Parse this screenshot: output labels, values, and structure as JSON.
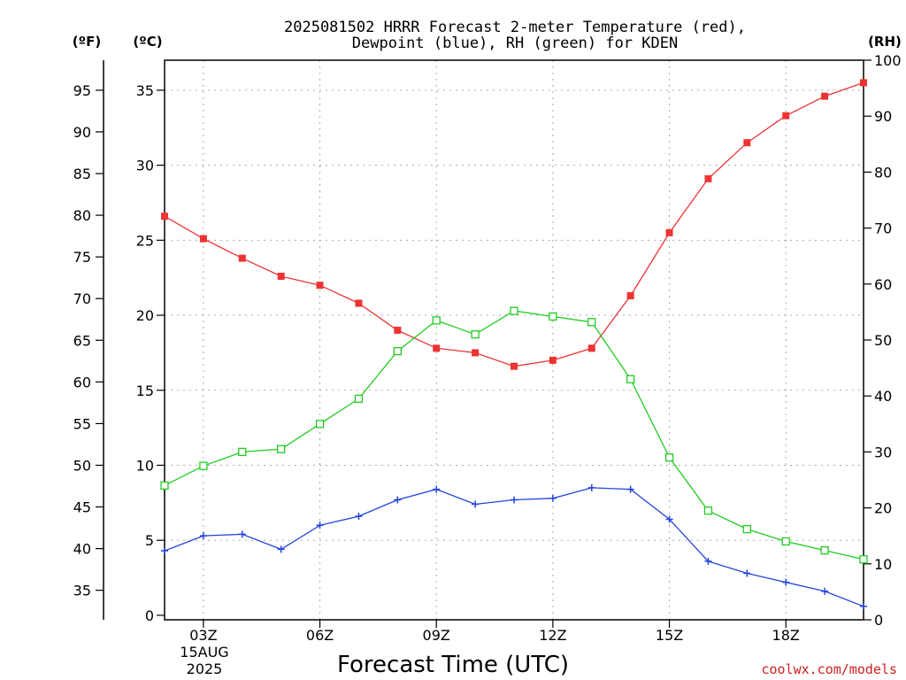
{
  "chart_data": {
    "type": "line",
    "title_line1": "2025081502 HRRR Forecast 2-meter Temperature (red),",
    "title_line2": "Dewpoint (blue), RH (green) for KDEN",
    "units": {
      "fahrenheit": "(ºF)",
      "celsius": "(ºC)",
      "rh": "(RH)"
    },
    "xlabel": "Forecast Time (UTC)",
    "x_first_label_date_line1": "15AUG",
    "x_first_label_date_line2": "2025",
    "credit": "coolwx.com/models",
    "x_hours": [
      2,
      3,
      4,
      5,
      6,
      7,
      8,
      9,
      10,
      11,
      12,
      13,
      14,
      15,
      16,
      17,
      18,
      19,
      20
    ],
    "x_range": [
      2,
      20
    ],
    "x_tick_hours": [
      3,
      6,
      9,
      12,
      15,
      18
    ],
    "x_tick_labels": [
      "03Z",
      "06Z",
      "09Z",
      "12Z",
      "15Z",
      "18Z"
    ],
    "celsius_range": [
      -0.3,
      37
    ],
    "celsius_ticks": [
      0,
      5,
      10,
      15,
      20,
      25,
      30,
      35
    ],
    "fahrenheit_ticks": [
      35,
      40,
      45,
      50,
      55,
      60,
      65,
      70,
      75,
      80,
      85,
      90,
      95
    ],
    "rh_range": [
      0,
      100
    ],
    "rh_ticks": [
      0,
      10,
      20,
      30,
      40,
      50,
      60,
      70,
      80,
      90,
      100
    ],
    "grid": true,
    "series": [
      {
        "role": "temperature",
        "axis": "celsius",
        "color": "#ee3333",
        "marker": "filled-square",
        "values": [
          26.6,
          25.1,
          23.8,
          22.6,
          22.0,
          20.8,
          19.0,
          17.8,
          17.5,
          16.6,
          17.0,
          17.8,
          21.3,
          25.5,
          29.1,
          31.5,
          33.3,
          34.6,
          35.5
        ]
      },
      {
        "role": "dewpoint",
        "axis": "celsius",
        "color": "#2244dd",
        "marker": "plus",
        "values": [
          4.3,
          5.3,
          5.4,
          4.4,
          6.0,
          6.6,
          7.7,
          8.4,
          7.4,
          7.7,
          7.8,
          8.5,
          8.4,
          6.4,
          3.6,
          2.8,
          2.2,
          1.6,
          0.6
        ]
      },
      {
        "role": "relative-humidity",
        "axis": "rh",
        "color": "#22cc22",
        "marker": "open-square",
        "values": [
          24,
          27.5,
          30,
          30.5,
          35,
          39.5,
          48,
          53.5,
          51,
          55.2,
          54.2,
          53.2,
          43,
          29,
          19.5,
          16.2,
          14,
          12.4,
          10.8
        ]
      }
    ]
  }
}
